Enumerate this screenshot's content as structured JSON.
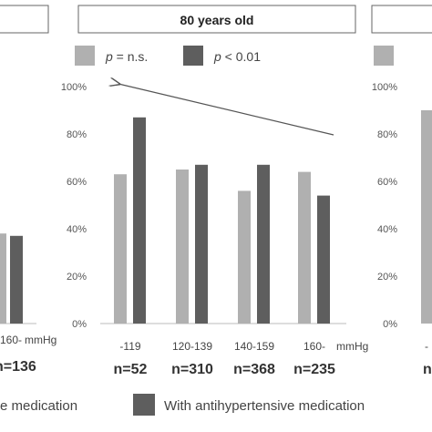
{
  "chart_data": {
    "type": "bar",
    "panels": [
      {
        "title": "80 years old",
        "legend": [
          {
            "pre": "p",
            "post": " = n.s.",
            "color": "#b0b0b0"
          },
          {
            "pre": "p",
            "post": " < 0.01",
            "color": "#5e5e5e"
          }
        ],
        "categories": [
          "-119",
          "120-139",
          "140-159",
          "160-"
        ],
        "unit": "mmHg",
        "n_labels": [
          "n=52",
          "n=310",
          "n=368",
          "n=235"
        ],
        "series": [
          {
            "color": "#b0b0b0",
            "values": [
              63,
              65,
              56,
              64
            ]
          },
          {
            "color": "#5e5e5e",
            "values": [
              87,
              67,
              67,
              54
            ]
          }
        ],
        "ylim": [
          0,
          100
        ],
        "yticks": [
          "0%",
          "20%",
          "40%",
          "60%",
          "80%",
          "100%"
        ]
      }
    ],
    "left_partial": {
      "category": "160-",
      "unit": "mmHg",
      "n_label": "n=136",
      "values": [
        38,
        37
      ]
    },
    "right_partial": {
      "yticks": [
        "0%",
        "20%",
        "40%",
        "60%",
        "80%",
        "100%"
      ],
      "first_bar": 90,
      "n_label_fragment": "n",
      "category_fragment": "-"
    },
    "bottom_legend": {
      "without_fragment": "e medication",
      "with_label": "With antihypertensive medication"
    }
  }
}
